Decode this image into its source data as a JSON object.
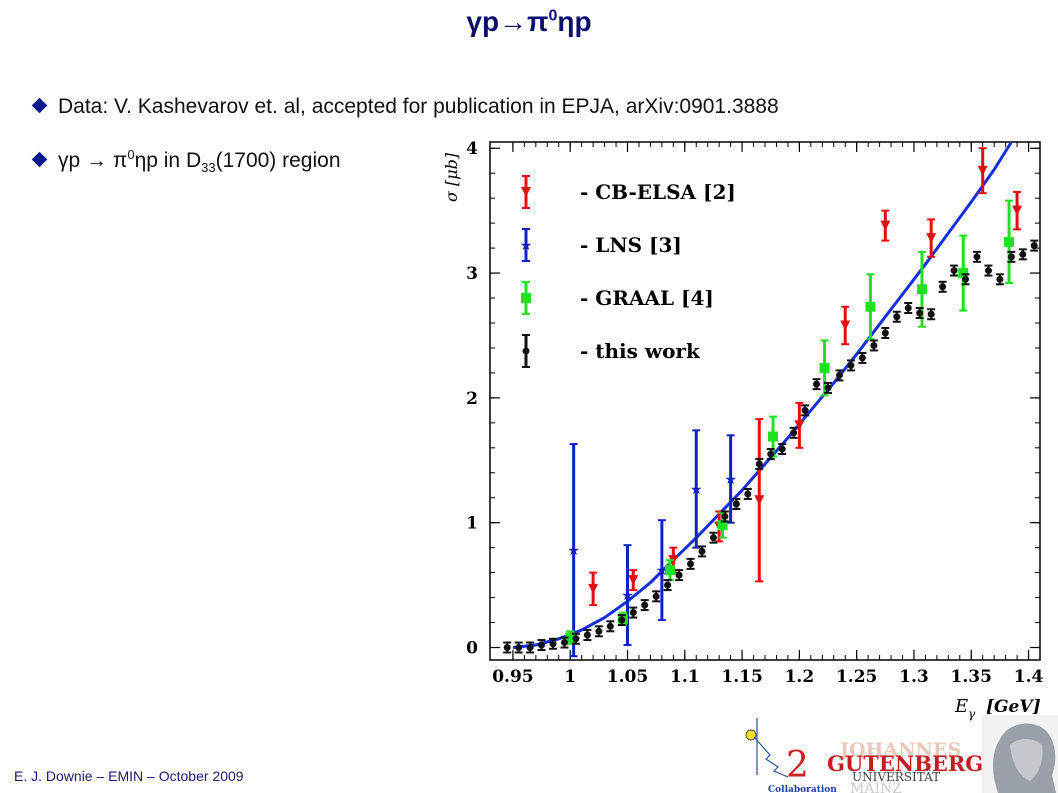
{
  "slide": {
    "title_main": "γp→π",
    "title_sup": "0",
    "title_end": "ηp",
    "bullet1": "Data: V. Kashevarov et. al, accepted for publication in EPJA, arXiv:0901.3888",
    "bullet2_a": "γp → π",
    "bullet2_sup": "0",
    "bullet2_b": "ηp in D",
    "bullet2_sub": "33",
    "bullet2_c": "(1700) region",
    "footer": "E. J. Downie – EMIN – October 2009"
  },
  "logos": {
    "a2_digit": "2",
    "a2_caption": "Collaboration",
    "uni_line1": "JOHANNES",
    "uni_line2": "GUTENBERG",
    "uni_line3": "UNIVERSITÄT",
    "uni_line4": "MAINZ"
  },
  "chart_data": {
    "type": "scatter",
    "xlabel": "E",
    "xlabel_sub": "γ",
    "xlabel_unit": "[GeV]",
    "ylabel": "σ [μb]",
    "xlim": [
      0.93,
      1.41
    ],
    "ylim": [
      -0.1,
      4.05
    ],
    "xticks": [
      "0.95",
      "1",
      "1.05",
      "1.1",
      "1.15",
      "1.2",
      "1.25",
      "1.3",
      "1.35",
      "1.4"
    ],
    "yticks": [
      "0",
      "1",
      "2",
      "3",
      "4"
    ],
    "legend_position": "top-left",
    "series": [
      {
        "name": "- CB-ELSA [2]",
        "marker": "triangle-down",
        "color": "#e01010",
        "points": [
          [
            1.02,
            0.47,
            0.13
          ],
          [
            1.055,
            0.54,
            0.08
          ],
          [
            1.09,
            0.7,
            0.1
          ],
          [
            1.13,
            0.97,
            0.12
          ],
          [
            1.165,
            1.18,
            0.65
          ],
          [
            1.2,
            1.78,
            0.18
          ],
          [
            1.24,
            2.58,
            0.15
          ],
          [
            1.275,
            3.38,
            0.12
          ],
          [
            1.315,
            3.28,
            0.15
          ],
          [
            1.36,
            3.82,
            0.18
          ],
          [
            1.39,
            3.5,
            0.15
          ]
        ]
      },
      {
        "name": "- LNS [3]",
        "marker": "star",
        "color": "#1020c8",
        "points": [
          [
            1.003,
            0.78,
            0.85
          ],
          [
            1.05,
            0.42,
            0.4
          ],
          [
            1.08,
            0.62,
            0.4
          ],
          [
            1.11,
            1.27,
            0.47
          ],
          [
            1.14,
            1.35,
            0.35
          ]
        ]
      },
      {
        "name": "- GRAAL [4]",
        "marker": "square",
        "color": "#20e020",
        "points": [
          [
            1.0,
            0.08,
            0.05
          ],
          [
            1.046,
            0.23,
            0.05
          ],
          [
            1.087,
            0.62,
            0.08
          ],
          [
            1.133,
            0.98,
            0.1
          ],
          [
            1.177,
            1.69,
            0.16
          ],
          [
            1.222,
            2.24,
            0.22
          ],
          [
            1.262,
            2.73,
            0.26
          ],
          [
            1.307,
            2.87,
            0.3
          ],
          [
            1.343,
            3.0,
            0.3
          ],
          [
            1.383,
            3.25,
            0.33
          ]
        ]
      },
      {
        "name": "- this work",
        "marker": "circle",
        "color": "#111111",
        "points": [
          [
            0.945,
            0.0
          ],
          [
            0.955,
            0.0
          ],
          [
            0.965,
            0.0
          ],
          [
            0.975,
            0.02
          ],
          [
            0.985,
            0.03
          ],
          [
            0.995,
            0.04
          ],
          [
            1.005,
            0.07
          ],
          [
            1.015,
            0.1
          ],
          [
            1.025,
            0.13
          ],
          [
            1.035,
            0.17
          ],
          [
            1.045,
            0.22
          ],
          [
            1.055,
            0.28
          ],
          [
            1.065,
            0.34
          ],
          [
            1.075,
            0.41
          ],
          [
            1.085,
            0.5
          ],
          [
            1.095,
            0.58
          ],
          [
            1.105,
            0.67
          ],
          [
            1.115,
            0.77
          ],
          [
            1.125,
            0.88
          ],
          [
            1.135,
            1.05
          ],
          [
            1.145,
            1.15
          ],
          [
            1.155,
            1.23
          ],
          [
            1.165,
            1.47
          ],
          [
            1.175,
            1.55
          ],
          [
            1.185,
            1.59
          ],
          [
            1.195,
            1.72
          ],
          [
            1.205,
            1.9
          ],
          [
            1.215,
            2.11
          ],
          [
            1.225,
            2.08
          ],
          [
            1.235,
            2.18
          ],
          [
            1.245,
            2.26
          ],
          [
            1.255,
            2.32
          ],
          [
            1.265,
            2.42
          ],
          [
            1.275,
            2.52
          ],
          [
            1.285,
            2.65
          ],
          [
            1.295,
            2.72
          ],
          [
            1.305,
            2.68
          ],
          [
            1.315,
            2.67
          ],
          [
            1.325,
            2.89
          ],
          [
            1.335,
            3.02
          ],
          [
            1.345,
            2.95
          ],
          [
            1.355,
            3.13
          ],
          [
            1.365,
            3.02
          ],
          [
            1.375,
            2.95
          ],
          [
            1.385,
            3.13
          ],
          [
            1.395,
            3.15
          ],
          [
            1.405,
            3.22
          ]
        ]
      }
    ],
    "curve": {
      "color": "#1530d8",
      "points": [
        [
          0.95,
          0.0
        ],
        [
          0.97,
          0.02
        ],
        [
          0.99,
          0.07
        ],
        [
          1.01,
          0.14
        ],
        [
          1.03,
          0.24
        ],
        [
          1.05,
          0.37
        ],
        [
          1.07,
          0.52
        ],
        [
          1.09,
          0.7
        ],
        [
          1.11,
          0.88
        ],
        [
          1.13,
          1.07
        ],
        [
          1.15,
          1.26
        ],
        [
          1.17,
          1.47
        ],
        [
          1.19,
          1.68
        ],
        [
          1.21,
          1.9
        ],
        [
          1.23,
          2.12
        ],
        [
          1.25,
          2.35
        ],
        [
          1.27,
          2.59
        ],
        [
          1.29,
          2.83
        ],
        [
          1.31,
          3.07
        ],
        [
          1.33,
          3.32
        ],
        [
          1.35,
          3.57
        ],
        [
          1.37,
          3.83
        ],
        [
          1.385,
          4.05
        ]
      ]
    }
  }
}
